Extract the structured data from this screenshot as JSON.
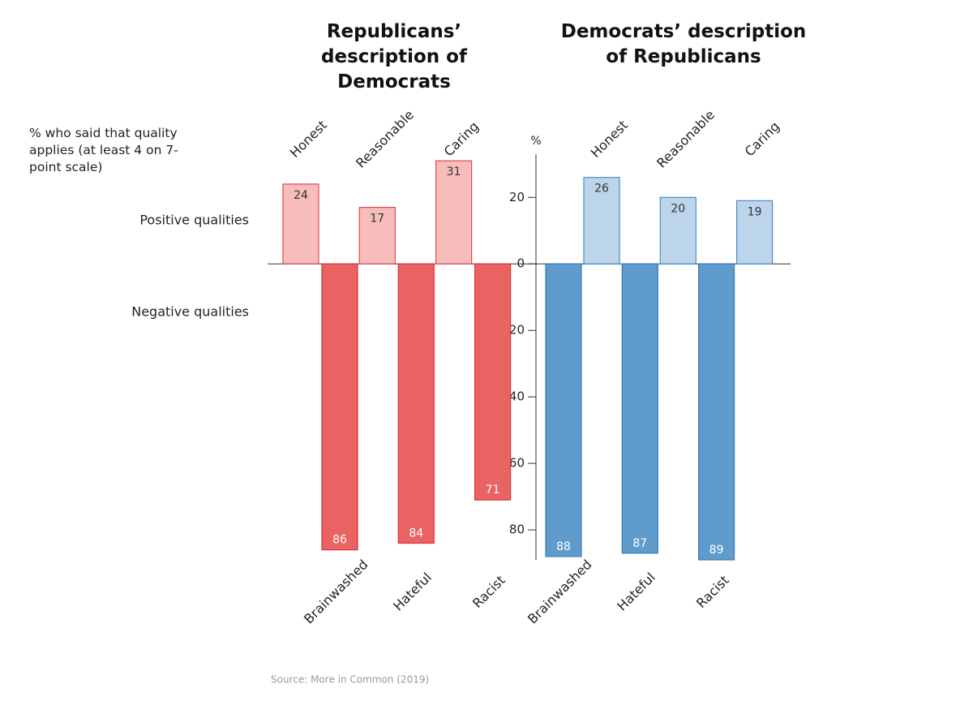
{
  "chart_data": {
    "type": "bar",
    "annotation": "% who said that quality applies (at least 4 on 7-point scale)",
    "row_labels": [
      "Positive qualities",
      "Negative qualities"
    ],
    "y_label": "%",
    "ylim": [
      -89,
      33
    ],
    "yticks": [
      20,
      0,
      {
        "value": -20,
        "label": "20"
      },
      {
        "value": -40,
        "label": "40"
      },
      {
        "value": -60,
        "label": "60"
      },
      {
        "value": -80,
        "label": "80"
      }
    ],
    "panels": [
      {
        "title": "Republicans’ description of Democrats",
        "series": [
          {
            "categories": [
              "Honest",
              "Reasonable",
              "Caring"
            ],
            "values": [
              24,
              17,
              31
            ],
            "color": "#f7bcbc",
            "edge_color": "#e5484d"
          },
          {
            "categories": [
              "Brainwashed",
              "Hateful",
              "Racist"
            ],
            "values": [
              -86,
              -84,
              -71
            ],
            "value_labels": [
              "86",
              "84",
              "71"
            ],
            "color": "#ea6363",
            "edge_color": "#d9343a"
          }
        ]
      },
      {
        "title": "Democrats’ description of Republicans",
        "series": [
          {
            "categories": [
              "Honest",
              "Reasonable",
              "Caring"
            ],
            "values": [
              26,
              20,
              19
            ],
            "color": "#bdd5eb",
            "edge_color": "#4a8cc8"
          },
          {
            "categories": [
              "Brainwashed",
              "Hateful",
              "Racist"
            ],
            "values": [
              -88,
              -87,
              -89
            ],
            "value_labels": [
              "88",
              "87",
              "89"
            ],
            "color": "#5f9bcc",
            "edge_color": "#3a7ab5"
          }
        ]
      }
    ],
    "source": "Source: More in Common (2019)"
  }
}
